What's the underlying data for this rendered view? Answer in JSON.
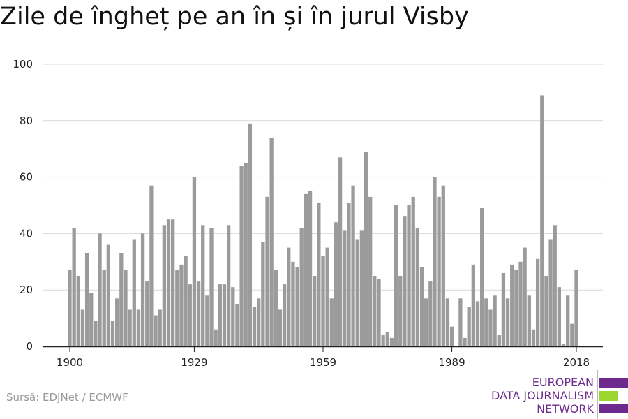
{
  "title": "Zile de îngheț pe an în și în jurul Visby",
  "source": "Sursă: EDJNet / ECMWF",
  "logo": {
    "line1": "EUROPEAN",
    "line2": "DATA JOURNALISM",
    "line3": "NETWORK",
    "color_purple": "#6b2a8c",
    "color_green": "#9dd62e"
  },
  "colors": {
    "bar": "#9b9b9b",
    "grid": "#d9d9d9",
    "axis": "#222222"
  },
  "chart_data": {
    "type": "bar",
    "title": "Zile de îngheț pe an în și în jurul Visby",
    "xlabel": "",
    "ylabel": "",
    "ylim": [
      0,
      100
    ],
    "yticks": [
      0,
      20,
      40,
      60,
      80,
      100
    ],
    "xticks": [
      1900,
      1929,
      1959,
      1989,
      2018
    ],
    "grid": true,
    "x": [
      1900,
      1901,
      1902,
      1903,
      1904,
      1905,
      1906,
      1907,
      1908,
      1909,
      1910,
      1911,
      1912,
      1913,
      1914,
      1915,
      1916,
      1917,
      1918,
      1919,
      1920,
      1921,
      1922,
      1923,
      1924,
      1925,
      1926,
      1927,
      1928,
      1929,
      1930,
      1931,
      1932,
      1933,
      1934,
      1935,
      1936,
      1937,
      1938,
      1939,
      1940,
      1941,
      1942,
      1943,
      1944,
      1945,
      1946,
      1947,
      1948,
      1949,
      1950,
      1951,
      1952,
      1953,
      1954,
      1955,
      1956,
      1957,
      1958,
      1959,
      1960,
      1961,
      1962,
      1963,
      1964,
      1965,
      1966,
      1967,
      1968,
      1969,
      1970,
      1971,
      1972,
      1973,
      1974,
      1975,
      1976,
      1977,
      1978,
      1979,
      1980,
      1981,
      1982,
      1983,
      1984,
      1985,
      1986,
      1987,
      1988,
      1989,
      1990,
      1991,
      1992,
      1993,
      1994,
      1995,
      1996,
      1997,
      1998,
      1999,
      2000,
      2001,
      2002,
      2003,
      2004,
      2005,
      2006,
      2007,
      2008,
      2009,
      2010,
      2011,
      2012,
      2013,
      2014,
      2015,
      2016,
      2017,
      2018
    ],
    "values": [
      27,
      42,
      25,
      13,
      33,
      19,
      9,
      40,
      27,
      36,
      9,
      17,
      33,
      27,
      13,
      38,
      13,
      40,
      23,
      57,
      11,
      13,
      43,
      45,
      45,
      27,
      29,
      32,
      22,
      60,
      23,
      43,
      18,
      42,
      6,
      22,
      22,
      43,
      21,
      15,
      64,
      65,
      79,
      14,
      17,
      37,
      53,
      74,
      27,
      13,
      22,
      35,
      30,
      28,
      42,
      54,
      55,
      25,
      51,
      32,
      35,
      17,
      44,
      67,
      41,
      51,
      57,
      38,
      41,
      69,
      53,
      25,
      24,
      4,
      5,
      3,
      50,
      25,
      46,
      50,
      53,
      42,
      28,
      17,
      23,
      60,
      53,
      57,
      17,
      7,
      0,
      17,
      3,
      14,
      29,
      16,
      49,
      17,
      13,
      18,
      4,
      26,
      17,
      29,
      27,
      30,
      35,
      18,
      6,
      31,
      89,
      25,
      38,
      43,
      21,
      1,
      18,
      8,
      27
    ]
  }
}
